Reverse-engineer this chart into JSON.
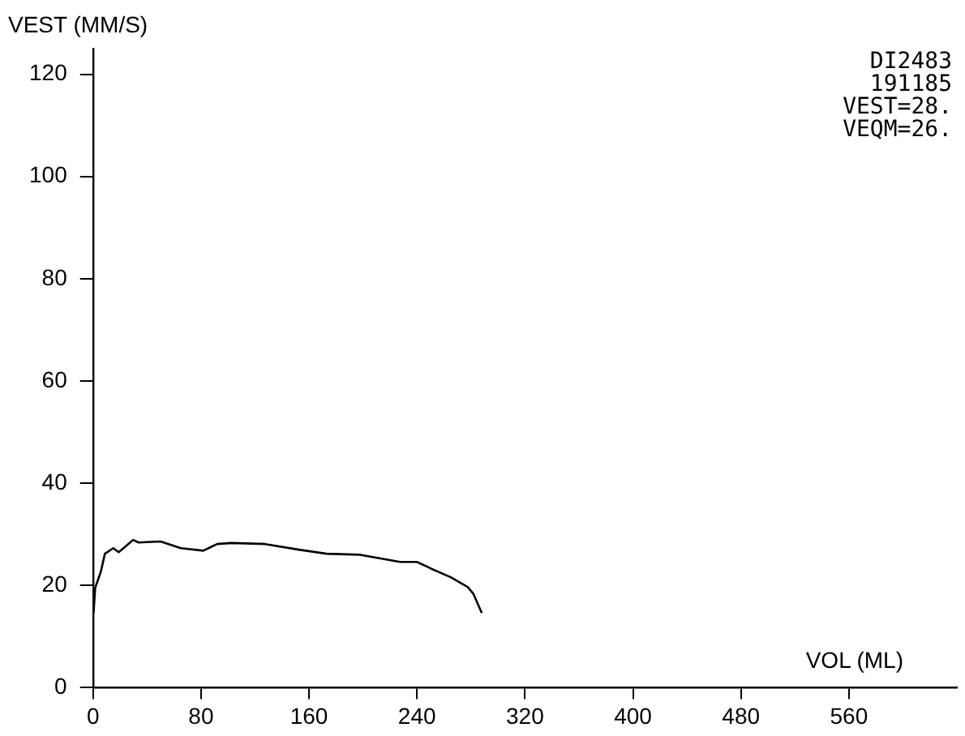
{
  "chart_data": {
    "type": "line",
    "xlabel": "VOL (ML)",
    "ylabel": "VEST (MM/S)",
    "annotations": [
      "DI2483",
      "191185",
      "VEST=28.",
      "VEQM=26."
    ],
    "series": [
      {
        "color": "#000000",
        "x": [
          0.4,
          1.6,
          5.8,
          8.8,
          15,
          19,
          24,
          29.6,
          33.8,
          50,
          65,
          81.7,
          92,
          102.5,
          127.5,
          152.5,
          173,
          198,
          227.5,
          240,
          250.4,
          265,
          277.5,
          281.7,
          288
        ],
        "values": [
          14.6,
          19.5,
          22.7,
          26.2,
          27.3,
          26.5,
          27.6,
          28.9,
          28.4,
          28.6,
          27.3,
          26.8,
          28.1,
          28.3,
          28.1,
          27,
          26.2,
          26,
          24.6,
          24.6,
          23.3,
          21.6,
          19.7,
          18.4,
          14.6
        ]
      }
    ],
    "xlim": [
      0,
      640
    ],
    "xticks": [
      0,
      80,
      160,
      240,
      320,
      400,
      480,
      560
    ],
    "ylim": [
      0,
      125
    ],
    "yticks": [
      0,
      20,
      40,
      60,
      80,
      100,
      120
    ],
    "grid": false,
    "legend": false,
    "marker": "none",
    "line_style": "solid"
  }
}
